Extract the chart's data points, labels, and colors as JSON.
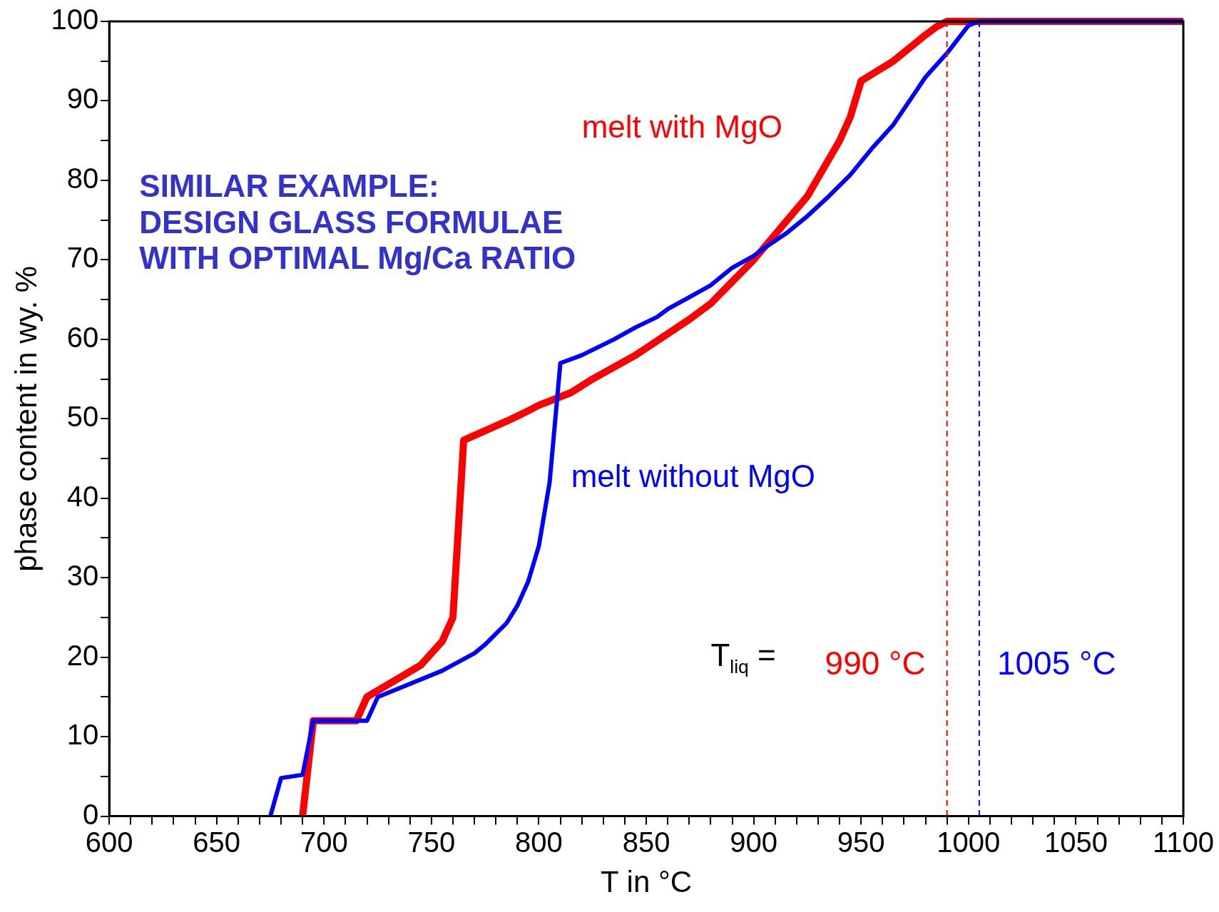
{
  "chart_data": {
    "type": "line",
    "xlabel": "T in °C",
    "ylabel": "phase content in wy. %",
    "xlim": [
      600,
      1100
    ],
    "xticks": [
      600,
      {
        "value": 610,
        "label": null
      },
      {
        "value": 620,
        "label": null
      },
      {
        "value": 630,
        "label": null
      },
      {
        "value": 640,
        "label": null
      },
      650,
      {
        "value": 660,
        "label": null
      },
      {
        "value": 670,
        "label": null
      },
      {
        "value": 680,
        "label": null
      },
      {
        "value": 690,
        "label": null
      },
      700,
      {
        "value": 710,
        "label": null
      },
      {
        "value": 720,
        "label": null
      },
      {
        "value": 730,
        "label": null
      },
      {
        "value": 740,
        "label": null
      },
      750,
      {
        "value": 760,
        "label": null
      },
      {
        "value": 770,
        "label": null
      },
      {
        "value": 780,
        "label": null
      },
      {
        "value": 790,
        "label": null
      },
      800,
      {
        "value": 810,
        "label": null
      },
      {
        "value": 820,
        "label": null
      },
      {
        "value": 830,
        "label": null
      },
      {
        "value": 840,
        "label": null
      },
      850,
      {
        "value": 860,
        "label": null
      },
      {
        "value": 870,
        "label": null
      },
      {
        "value": 880,
        "label": null
      },
      {
        "value": 890,
        "label": null
      },
      900,
      {
        "value": 910,
        "label": null
      },
      {
        "value": 920,
        "label": null
      },
      {
        "value": 930,
        "label": null
      },
      {
        "value": 940,
        "label": null
      },
      950,
      {
        "value": 960,
        "label": null
      },
      {
        "value": 970,
        "label": null
      },
      {
        "value": 980,
        "label": null
      },
      {
        "value": 990,
        "label": null
      },
      1000,
      {
        "value": 1010,
        "label": null
      },
      {
        "value": 1020,
        "label": null
      },
      {
        "value": 1030,
        "label": null
      },
      {
        "value": 1040,
        "label": null
      },
      1050,
      {
        "value": 1060,
        "label": null
      },
      {
        "value": 1070,
        "label": null
      },
      {
        "value": 1080,
        "label": null
      },
      {
        "value": 1090,
        "label": null
      },
      1100
    ],
    "ylim": [
      0,
      100
    ],
    "yticks": [
      0,
      {
        "value": 5,
        "label": null
      },
      10,
      {
        "value": 15,
        "label": null
      },
      20,
      {
        "value": 25,
        "label": null
      },
      30,
      {
        "value": 35,
        "label": null
      },
      40,
      {
        "value": 45,
        "label": null
      },
      50,
      {
        "value": 55,
        "label": null
      },
      60,
      {
        "value": 65,
        "label": null
      },
      70,
      {
        "value": 75,
        "label": null
      },
      80,
      {
        "value": 85,
        "label": null
      },
      90,
      {
        "value": 95,
        "label": null
      },
      100
    ],
    "grid": false,
    "legend": false,
    "marker": "none",
    "line_style": "solid",
    "series": [
      {
        "name": "melt with MgO",
        "color": "#ff0000",
        "x": [
          690,
          695,
          715,
          720,
          745,
          755,
          760,
          765,
          785,
          795,
          800,
          815,
          825,
          845,
          870,
          880,
          900,
          925,
          940,
          945,
          950,
          965,
          980,
          985,
          990,
          1100
        ],
        "values": [
          0,
          12,
          12,
          15,
          19,
          22,
          25,
          47.3,
          49.7,
          51,
          51.7,
          53.3,
          55,
          58,
          62.5,
          64.5,
          70,
          78,
          85,
          88,
          92.5,
          95,
          98.3,
          99.3,
          100,
          100
        ]
      },
      {
        "name": "melt without MgO",
        "color": "#0000ff",
        "x": [
          675,
          680,
          690,
          695,
          720,
          725,
          755,
          770,
          775,
          785,
          790,
          795,
          800,
          805,
          810,
          820,
          835,
          845,
          855,
          860,
          870,
          880,
          890,
          900,
          905,
          915,
          925,
          935,
          945,
          955,
          965,
          975,
          980,
          990,
          1000,
          1005,
          1100
        ],
        "values": [
          0,
          4.8,
          5.2,
          12,
          12,
          15,
          18.3,
          20.5,
          21.6,
          24.3,
          26.5,
          29.5,
          34,
          42,
          57,
          58,
          60,
          61.5,
          62.8,
          63.8,
          65.3,
          66.8,
          69,
          70.5,
          71.5,
          73.3,
          75.5,
          78,
          80.7,
          84,
          87,
          91,
          93,
          96,
          99.5,
          100,
          100
        ]
      }
    ],
    "ref_lines": [
      {
        "axis": "x",
        "value": 990,
        "label": "990 °C",
        "color": "#ff0000",
        "line_style": "dashed"
      },
      {
        "axis": "x",
        "value": 1005,
        "label": "1005 °C",
        "color": "#0000ff",
        "line_style": "dashed"
      }
    ],
    "annotations": [
      "SIMILAR EXAMPLE:\nDESIGN GLASS FORMULAE\nWITH OPTIMAL Mg/Ca RATIO",
      "T$_{liq}$ ="
    ]
  }
}
